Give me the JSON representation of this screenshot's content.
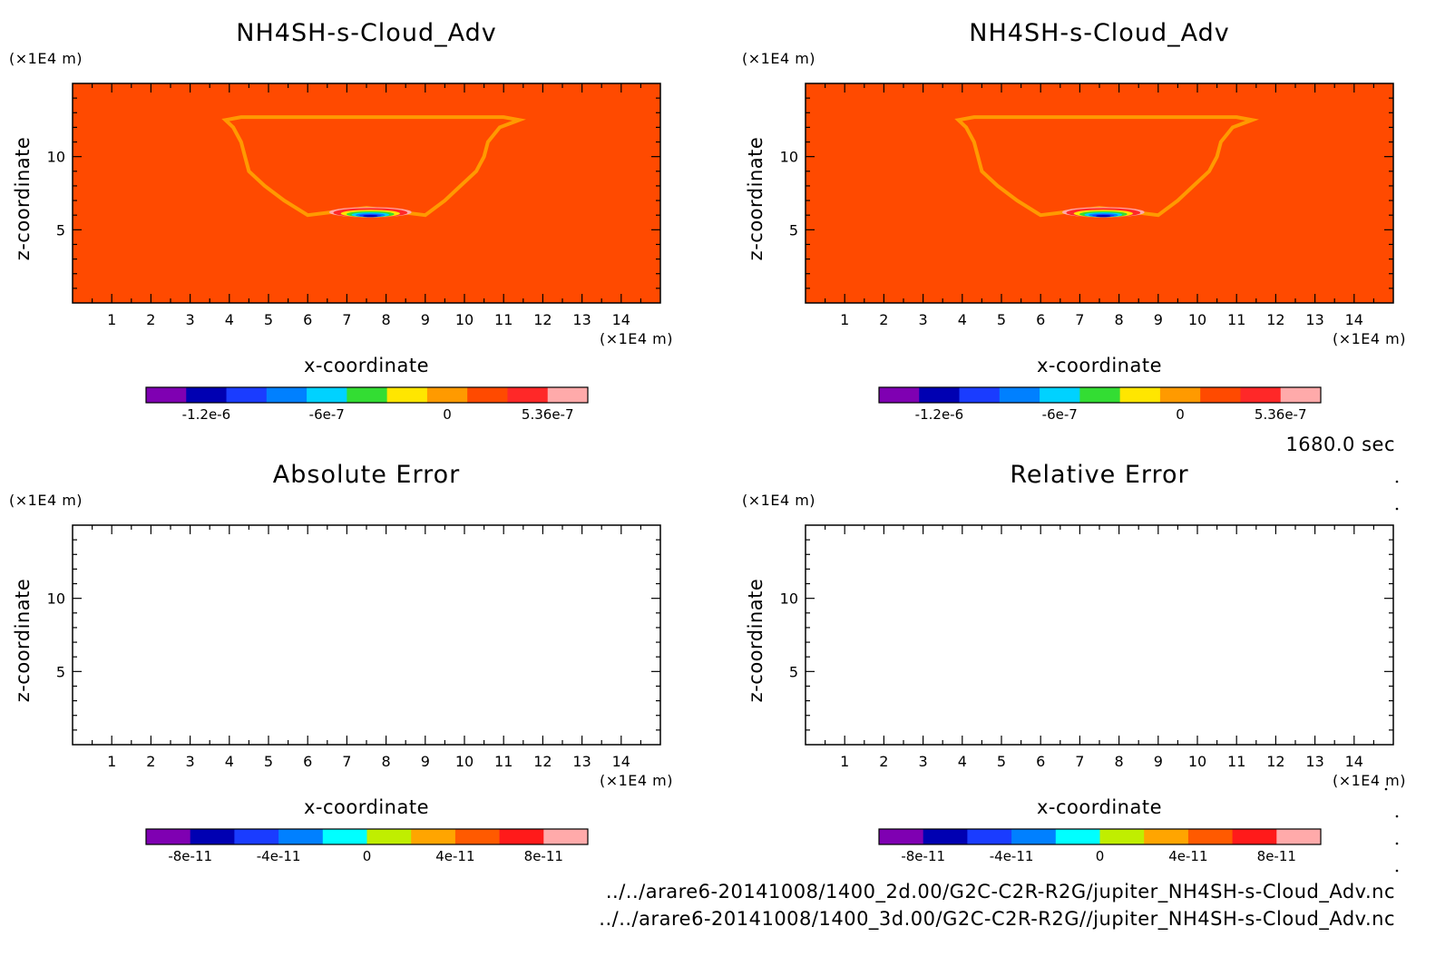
{
  "figure": {
    "time_label": "1680.0 sec",
    "file_paths": [
      "../../arare6-20141008/1400_2d.00/G2C-C2R-R2G/jupiter_NH4SH-s-Cloud_Adv.nc",
      "../../arare6-20141008/1400_3d.00/G2C-C2R-R2G//jupiter_NH4SH-s-Cloud_Adv.nc"
    ]
  },
  "chart_data": [
    {
      "type": "heatmap",
      "title": "NH4SH-s-Cloud_Adv",
      "xlabel": "x-coordinate",
      "ylabel": "z-coordinate",
      "x_unit": "(×1E4 m)",
      "y_unit": "(×1E4 m)",
      "xlim": [
        0,
        15
      ],
      "ylim": [
        0,
        15
      ],
      "x_ticks": [
        1,
        2,
        3,
        4,
        5,
        6,
        7,
        8,
        9,
        10,
        11,
        12,
        13,
        14
      ],
      "y_ticks": [
        5,
        10
      ],
      "background_value": 0,
      "cloud_outline": [
        [
          3.9,
          12.5
        ],
        [
          4.3,
          12.7
        ],
        [
          11.0,
          12.7
        ],
        [
          11.4,
          12.5
        ],
        [
          10.9,
          12.0
        ],
        [
          10.6,
          11.0
        ],
        [
          10.5,
          10.0
        ],
        [
          10.3,
          9.0
        ],
        [
          9.9,
          8.0
        ],
        [
          9.5,
          7.0
        ],
        [
          9.0,
          6.0
        ],
        [
          7.5,
          6.5
        ],
        [
          6.0,
          6.0
        ],
        [
          5.4,
          7.0
        ],
        [
          4.9,
          8.0
        ],
        [
          4.5,
          9.0
        ],
        [
          4.4,
          10.0
        ],
        [
          4.3,
          11.0
        ],
        [
          4.1,
          12.0
        ]
      ],
      "anomaly": {
        "center": [
          7.6,
          6.2
        ],
        "half_width": [
          1.05,
          0.35
        ],
        "min": -1.4e-06,
        "max": 5.36e-07
      },
      "colorbar": {
        "colors": [
          "#7f00b2",
          "#0000b2",
          "#1a3cff",
          "#0080ff",
          "#00d2ff",
          "#33dd33",
          "#ffe600",
          "#ff9a00",
          "#ff4a00",
          "#ff2828",
          "#ffaaaa"
        ],
        "labels": [
          "-1.2e-6",
          "-6e-7",
          "0",
          "5.36e-7"
        ],
        "label_positions": [
          1.5,
          4.5,
          7.5,
          10
        ]
      }
    },
    {
      "type": "heatmap",
      "title": "NH4SH-s-Cloud_Adv",
      "xlabel": "x-coordinate",
      "ylabel": "z-coordinate",
      "x_unit": "(×1E4 m)",
      "y_unit": "(×1E4 m)",
      "xlim": [
        0,
        15
      ],
      "ylim": [
        0,
        15
      ],
      "x_ticks": [
        1,
        2,
        3,
        4,
        5,
        6,
        7,
        8,
        9,
        10,
        11,
        12,
        13,
        14
      ],
      "y_ticks": [
        5,
        10
      ],
      "background_value": 0,
      "cloud_outline": [
        [
          3.9,
          12.5
        ],
        [
          4.3,
          12.7
        ],
        [
          11.0,
          12.7
        ],
        [
          11.4,
          12.5
        ],
        [
          10.9,
          12.0
        ],
        [
          10.6,
          11.0
        ],
        [
          10.5,
          10.0
        ],
        [
          10.3,
          9.0
        ],
        [
          9.9,
          8.0
        ],
        [
          9.5,
          7.0
        ],
        [
          9.0,
          6.0
        ],
        [
          7.5,
          6.5
        ],
        [
          6.0,
          6.0
        ],
        [
          5.4,
          7.0
        ],
        [
          4.9,
          8.0
        ],
        [
          4.5,
          9.0
        ],
        [
          4.4,
          10.0
        ],
        [
          4.3,
          11.0
        ],
        [
          4.1,
          12.0
        ]
      ],
      "anomaly": {
        "center": [
          7.6,
          6.2
        ],
        "half_width": [
          1.05,
          0.35
        ],
        "min": -1.4e-06,
        "max": 5.36e-07
      },
      "colorbar": {
        "colors": [
          "#7f00b2",
          "#0000b2",
          "#1a3cff",
          "#0080ff",
          "#00d2ff",
          "#33dd33",
          "#ffe600",
          "#ff9a00",
          "#ff4a00",
          "#ff2828",
          "#ffaaaa"
        ],
        "labels": [
          "-1.2e-6",
          "-6e-7",
          "0",
          "5.36e-7"
        ],
        "label_positions": [
          1.5,
          4.5,
          7.5,
          10
        ]
      }
    },
    {
      "type": "heatmap",
      "title": "Absolute Error",
      "xlabel": "x-coordinate",
      "ylabel": "z-coordinate",
      "x_unit": "(×1E4 m)",
      "y_unit": "(×1E4 m)",
      "xlim": [
        0,
        15
      ],
      "ylim": [
        0,
        15
      ],
      "x_ticks": [
        1,
        2,
        3,
        4,
        5,
        6,
        7,
        8,
        9,
        10,
        11,
        12,
        13,
        14
      ],
      "y_ticks": [
        5,
        10
      ],
      "values": "empty",
      "colorbar": {
        "colors": [
          "#7f00b2",
          "#0000b2",
          "#1a3cff",
          "#0080ff",
          "#00ffff",
          "#c0ee00",
          "#ffa500",
          "#ff5a00",
          "#ff1a1a",
          "#ffaaaa"
        ],
        "labels": [
          "-8e-11",
          "-4e-11",
          "0",
          "4e-11",
          "8e-11"
        ],
        "label_positions": [
          1,
          3,
          5,
          7,
          9
        ]
      }
    },
    {
      "type": "heatmap",
      "title": "Relative Error",
      "xlabel": "x-coordinate",
      "ylabel": "z-coordinate",
      "x_unit": "(×1E4 m)",
      "y_unit": "(×1E4 m)",
      "xlim": [
        0,
        15
      ],
      "ylim": [
        0,
        15
      ],
      "x_ticks": [
        1,
        2,
        3,
        4,
        5,
        6,
        7,
        8,
        9,
        10,
        11,
        12,
        13,
        14
      ],
      "y_ticks": [
        5,
        10
      ],
      "values": "empty",
      "colorbar": {
        "colors": [
          "#7f00b2",
          "#0000b2",
          "#1a3cff",
          "#0080ff",
          "#00ffff",
          "#c0ee00",
          "#ffa500",
          "#ff5a00",
          "#ff1a1a",
          "#ffaaaa"
        ],
        "labels": [
          "-8e-11",
          "-4e-11",
          "0",
          "4e-11",
          "8e-11"
        ],
        "label_positions": [
          1,
          3,
          5,
          7,
          9
        ]
      }
    }
  ]
}
